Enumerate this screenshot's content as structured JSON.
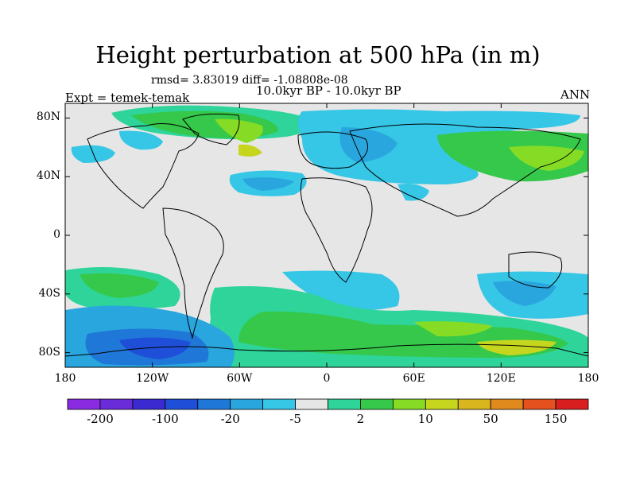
{
  "title": "Height perturbation at 500 hPa (in m)",
  "stats": "rmsd= 3.83019 diff= -1.08808e-08",
  "period": "10.0kyr BP - 10.0kyr BP",
  "experiment": "Expt = temek-temak",
  "season": "ANN",
  "map": {
    "projection": "cylindrical equidistant",
    "lon_range": [
      -180,
      180
    ],
    "lat_range": [
      -90,
      90
    ],
    "coastlines": true,
    "background_color": "#e6e6e6",
    "lat_ticks": [
      {
        "value": 80,
        "label": "80N"
      },
      {
        "value": 40,
        "label": "40N"
      },
      {
        "value": 0,
        "label": "0"
      },
      {
        "value": -40,
        "label": "40S"
      },
      {
        "value": -80,
        "label": "80S"
      }
    ],
    "lon_ticks": [
      {
        "value": -180,
        "label": "180"
      },
      {
        "value": -120,
        "label": "120W"
      },
      {
        "value": -60,
        "label": "60W"
      },
      {
        "value": 0,
        "label": "0"
      },
      {
        "value": 60,
        "label": "60E"
      },
      {
        "value": 120,
        "label": "120E"
      },
      {
        "value": 180,
        "label": "180"
      }
    ]
  },
  "colorbar": {
    "colors": [
      "#8a2be2",
      "#6a2bd8",
      "#3a2ad0",
      "#1f4fd8",
      "#1f78d8",
      "#2aa6de",
      "#36c6e6",
      "#e6e6e6",
      "#2ed49a",
      "#35c84a",
      "#86dc24",
      "#c6d61e",
      "#d9b61e",
      "#e08a1e",
      "#e4501e",
      "#d81e1e"
    ],
    "labels": [
      "-200",
      "-100",
      "-20",
      "-5",
      "2",
      "10",
      "50",
      "150"
    ]
  }
}
